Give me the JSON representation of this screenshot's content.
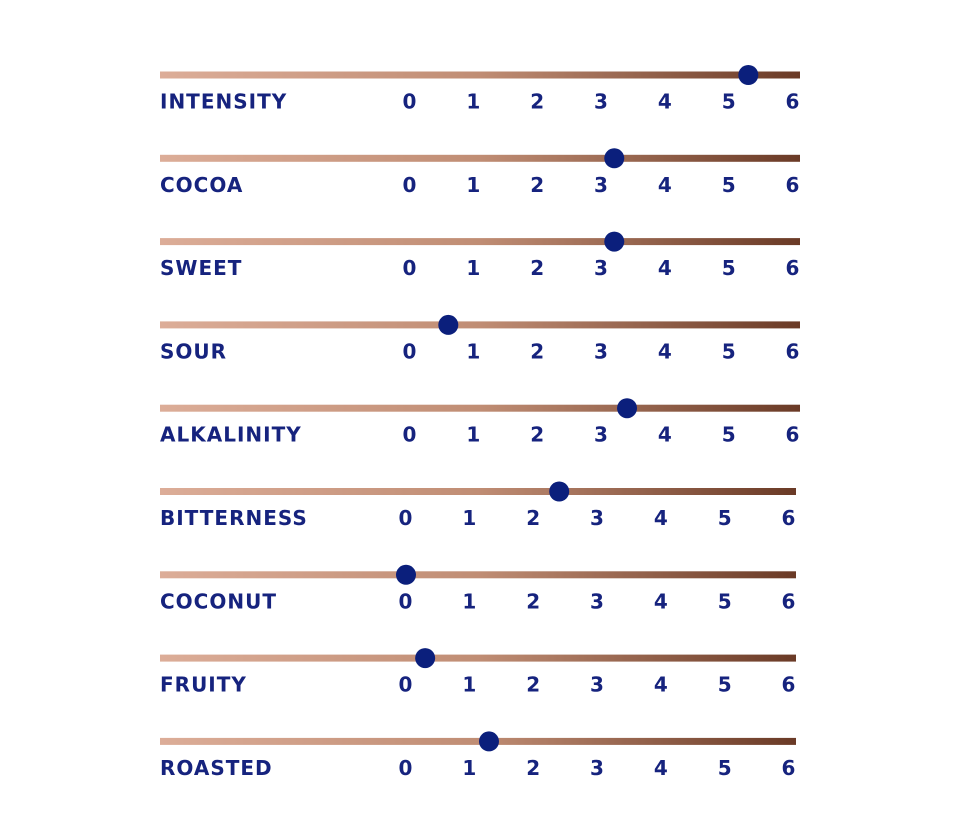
{
  "chart_data": {
    "type": "dot",
    "categories": [
      "INTENSITY",
      "COCOA",
      "SWEET",
      "SOUR",
      "ALKALINITY",
      "BITTERNESS",
      "COCONUT",
      "FRUITY",
      "ROASTED"
    ],
    "values": [
      5.3,
      3.2,
      3.2,
      0.6,
      3.4,
      2.4,
      0,
      0.3,
      1.3
    ],
    "color": "#0b1f7c",
    "xlim": [
      0,
      6
    ],
    "xticks": [
      0,
      1,
      2,
      3,
      4,
      5,
      6
    ]
  }
}
